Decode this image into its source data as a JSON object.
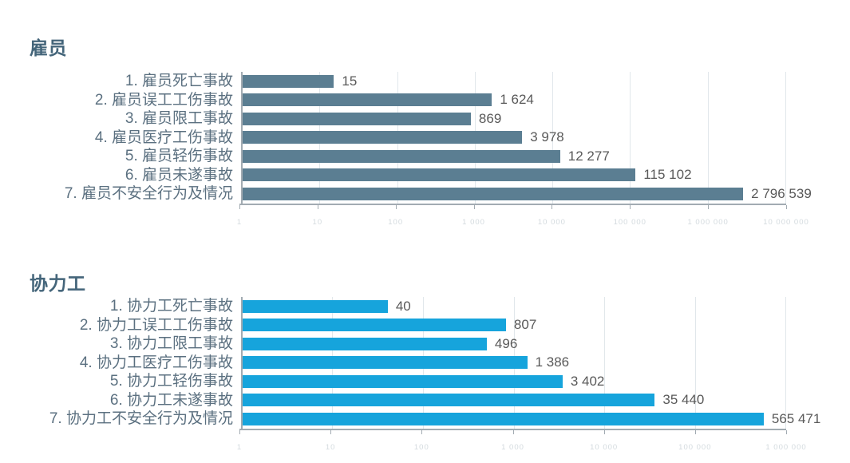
{
  "page": {
    "background": "#ffffff",
    "axis_color": "#a2abb2",
    "gridline_color": "#e1e7eb",
    "value_label_color": "#595959",
    "category_label_color": "#5b7080",
    "title_color": "#44657a"
  },
  "chart_data": [
    {
      "type": "bar",
      "orientation": "horizontal",
      "title": "雇员",
      "categories": [
        "1. 雇员死亡事故",
        "2. 雇员误工工伤事故",
        "3. 雇员限工事故",
        "4. 雇员医疗工伤事故",
        "5. 雇员轻伤事故",
        "6. 雇员未遂事故",
        "7. 雇员不安全行为及情况"
      ],
      "values": [
        15,
        1624,
        869,
        3978,
        12277,
        115102,
        2796539
      ],
      "value_labels": [
        "15",
        "1 624",
        "869",
        "3 978",
        "12 277",
        "115 102",
        "2 796 539"
      ],
      "bar_color": "#5b7e92",
      "x_scale": "log10",
      "xlim": [
        1,
        10000000
      ],
      "decades": 7,
      "x_ticks": [
        "1",
        "10",
        "100",
        "1 000",
        "10 000",
        "100 000",
        "1 000 000",
        "10 000 000"
      ],
      "grid": true,
      "legend": "none"
    },
    {
      "type": "bar",
      "orientation": "horizontal",
      "title": "协力工",
      "categories": [
        "1. 协力工死亡事故",
        "2. 协力工误工工伤事故",
        "3. 协力工限工事故",
        "4. 协力工医疗工伤事故",
        "5. 协力工轻伤事故",
        "6. 协力工未遂事故",
        "7. 协力工不安全行为及情况"
      ],
      "values": [
        40,
        807,
        496,
        1386,
        3402,
        35440,
        565471
      ],
      "value_labels": [
        "40",
        "807",
        "496",
        "1 386",
        "3 402",
        "35 440",
        "565 471"
      ],
      "bar_color": "#16a4dc",
      "x_scale": "log10",
      "xlim": [
        1,
        1000000
      ],
      "decades": 6,
      "x_ticks": [
        "1",
        "10",
        "100",
        "1 000",
        "10 000",
        "100 000",
        "1 000 000"
      ],
      "grid": true,
      "legend": "none"
    }
  ]
}
